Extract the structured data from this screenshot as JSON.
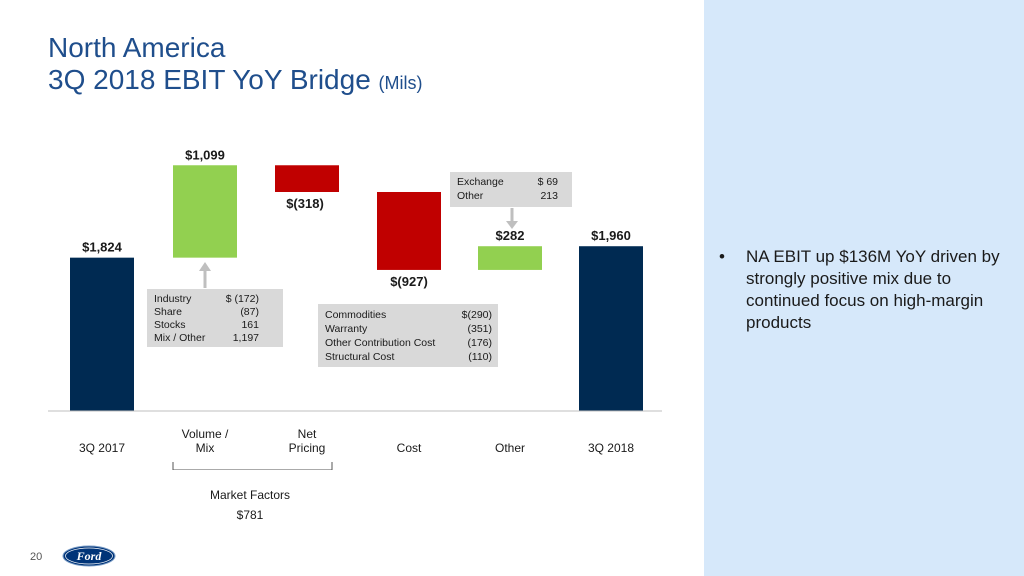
{
  "title": {
    "line1": "North America",
    "line2": "3Q 2018 EBIT YoY Bridge",
    "unit": "(Mils)"
  },
  "bullet": {
    "marker": "•",
    "text": "NA EBIT up $136M YoY driven by strongly positive mix due to continued focus on high-margin products"
  },
  "boxes": {
    "volume_mix": [
      {
        "label": "Industry",
        "value": "$  (172)"
      },
      {
        "label": "Share",
        "value": "(87)"
      },
      {
        "label": "Stocks",
        "value": "161"
      },
      {
        "label": "Mix / Other",
        "value": "1,197"
      }
    ],
    "cost": [
      {
        "label": "Commodities",
        "value": "$(290)"
      },
      {
        "label": "Warranty",
        "value": "(351)"
      },
      {
        "label": "Other Contribution Cost",
        "value": "(176)"
      },
      {
        "label": "Structural Cost",
        "value": "(110)"
      }
    ],
    "other": [
      {
        "label": "Exchange",
        "value": "$  69"
      },
      {
        "label": "Other",
        "value": "213"
      }
    ]
  },
  "market_factors": {
    "label": "Market Factors",
    "value": "$781"
  },
  "page_number": "20",
  "logo_text": "Ford",
  "colors": {
    "base": "#002a52",
    "positive": "#92d050",
    "negative": "#c00000",
    "title": "#1f4e8c",
    "panel": "#d6e8fa"
  },
  "chart_data": {
    "type": "waterfall",
    "categories": [
      "3Q 2017",
      "Volume / Mix",
      "Net Pricing",
      "Cost",
      "Other",
      "3Q 2018"
    ],
    "category_lines": [
      [
        "",
        "3Q 2017"
      ],
      [
        "Volume /",
        "Mix"
      ],
      [
        "Net",
        "Pricing"
      ],
      [
        "",
        "Cost"
      ],
      [
        "",
        "Other"
      ],
      [
        "",
        "3Q 2018"
      ]
    ],
    "values": [
      1824,
      1099,
      -318,
      -927,
      282,
      1960
    ],
    "kinds": [
      "total",
      "delta",
      "delta",
      "delta",
      "delta",
      "total"
    ],
    "value_labels": [
      "$1,824",
      "$1,099",
      "$(318)",
      "$(927)",
      "$282",
      "$1,960"
    ],
    "ylim": [
      0,
      3000
    ]
  }
}
